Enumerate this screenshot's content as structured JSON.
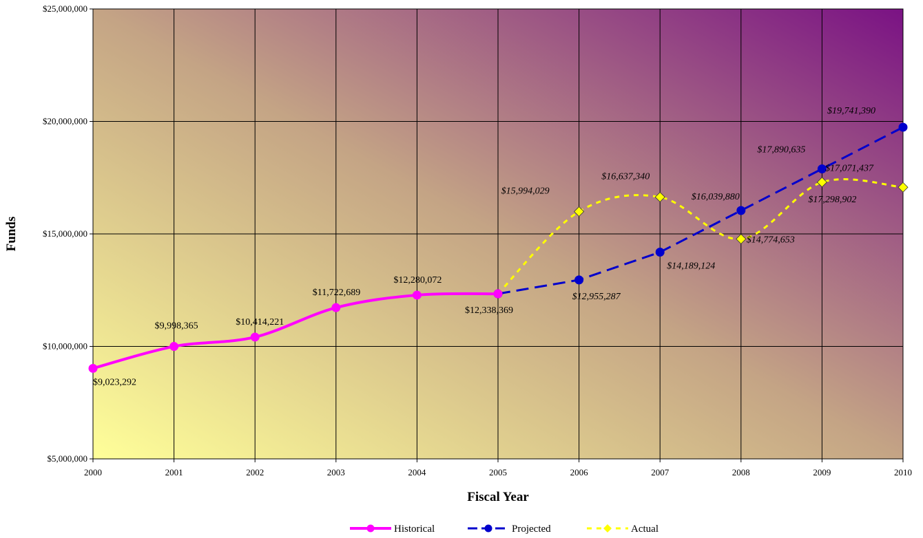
{
  "chart_data": {
    "type": "line",
    "xlabel": "Fiscal Year",
    "ylabel": "Funds",
    "ylim": [
      5000000,
      25000000
    ],
    "yticks": [
      5000000,
      10000000,
      15000000,
      20000000,
      25000000
    ],
    "ytick_labels": [
      "$5,000,000",
      "$10,000,000",
      "$15,000,000",
      "$20,000,000",
      "$25,000,000"
    ],
    "categories": [
      "2000",
      "2001",
      "2002",
      "2003",
      "2004",
      "2005",
      "2006",
      "2007",
      "2008",
      "2009",
      "2010"
    ],
    "grid": true,
    "background": "gradient yellow (bottom-left) to purple (top-right)",
    "legend": "bottom",
    "series": [
      {
        "name": "Historical",
        "color": "#ff00ff",
        "style": "solid smooth",
        "marker": "circle",
        "points": [
          {
            "x": "2000",
            "y": 9023292,
            "label": "$9,023,292"
          },
          {
            "x": "2001",
            "y": 9998365,
            "label": "$9,998,365"
          },
          {
            "x": "2002",
            "y": 10414221,
            "label": "$10,414,221"
          },
          {
            "x": "2003",
            "y": 11722689,
            "label": "$11,722,689"
          },
          {
            "x": "2004",
            "y": 12280072,
            "label": "$12,280,072"
          },
          {
            "x": "2005",
            "y": 12338369,
            "label": "$12,338,369"
          }
        ]
      },
      {
        "name": "Projected",
        "color": "#0000cc",
        "style": "dashed",
        "marker": "circle",
        "points": [
          {
            "x": "2005",
            "y": 12338369,
            "label": ""
          },
          {
            "x": "2006",
            "y": 12955287,
            "label": "$12,955,287"
          },
          {
            "x": "2007",
            "y": 14189124,
            "label": "$14,189,124"
          },
          {
            "x": "2008",
            "y": 16039880,
            "label": "$16,039,880"
          },
          {
            "x": "2009",
            "y": 17890635,
            "label": "$17,890,635"
          },
          {
            "x": "2010",
            "y": 19741390,
            "label": "$19,741,390"
          }
        ]
      },
      {
        "name": "Actual",
        "color": "#ffff00",
        "style": "dotted",
        "marker": "diamond",
        "points": [
          {
            "x": "2005",
            "y": 12338369,
            "label": ""
          },
          {
            "x": "2006",
            "y": 15994029,
            "label": "$15,994,029"
          },
          {
            "x": "2007",
            "y": 16637340,
            "label": "$16,637,340"
          },
          {
            "x": "2008",
            "y": 14774653,
            "label": "$14,774,653"
          },
          {
            "x": "2009",
            "y": 17298902,
            "label": "$17,298,902"
          },
          {
            "x": "2010",
            "y": 17071437,
            "label": "$17,071,437"
          }
        ]
      }
    ]
  }
}
